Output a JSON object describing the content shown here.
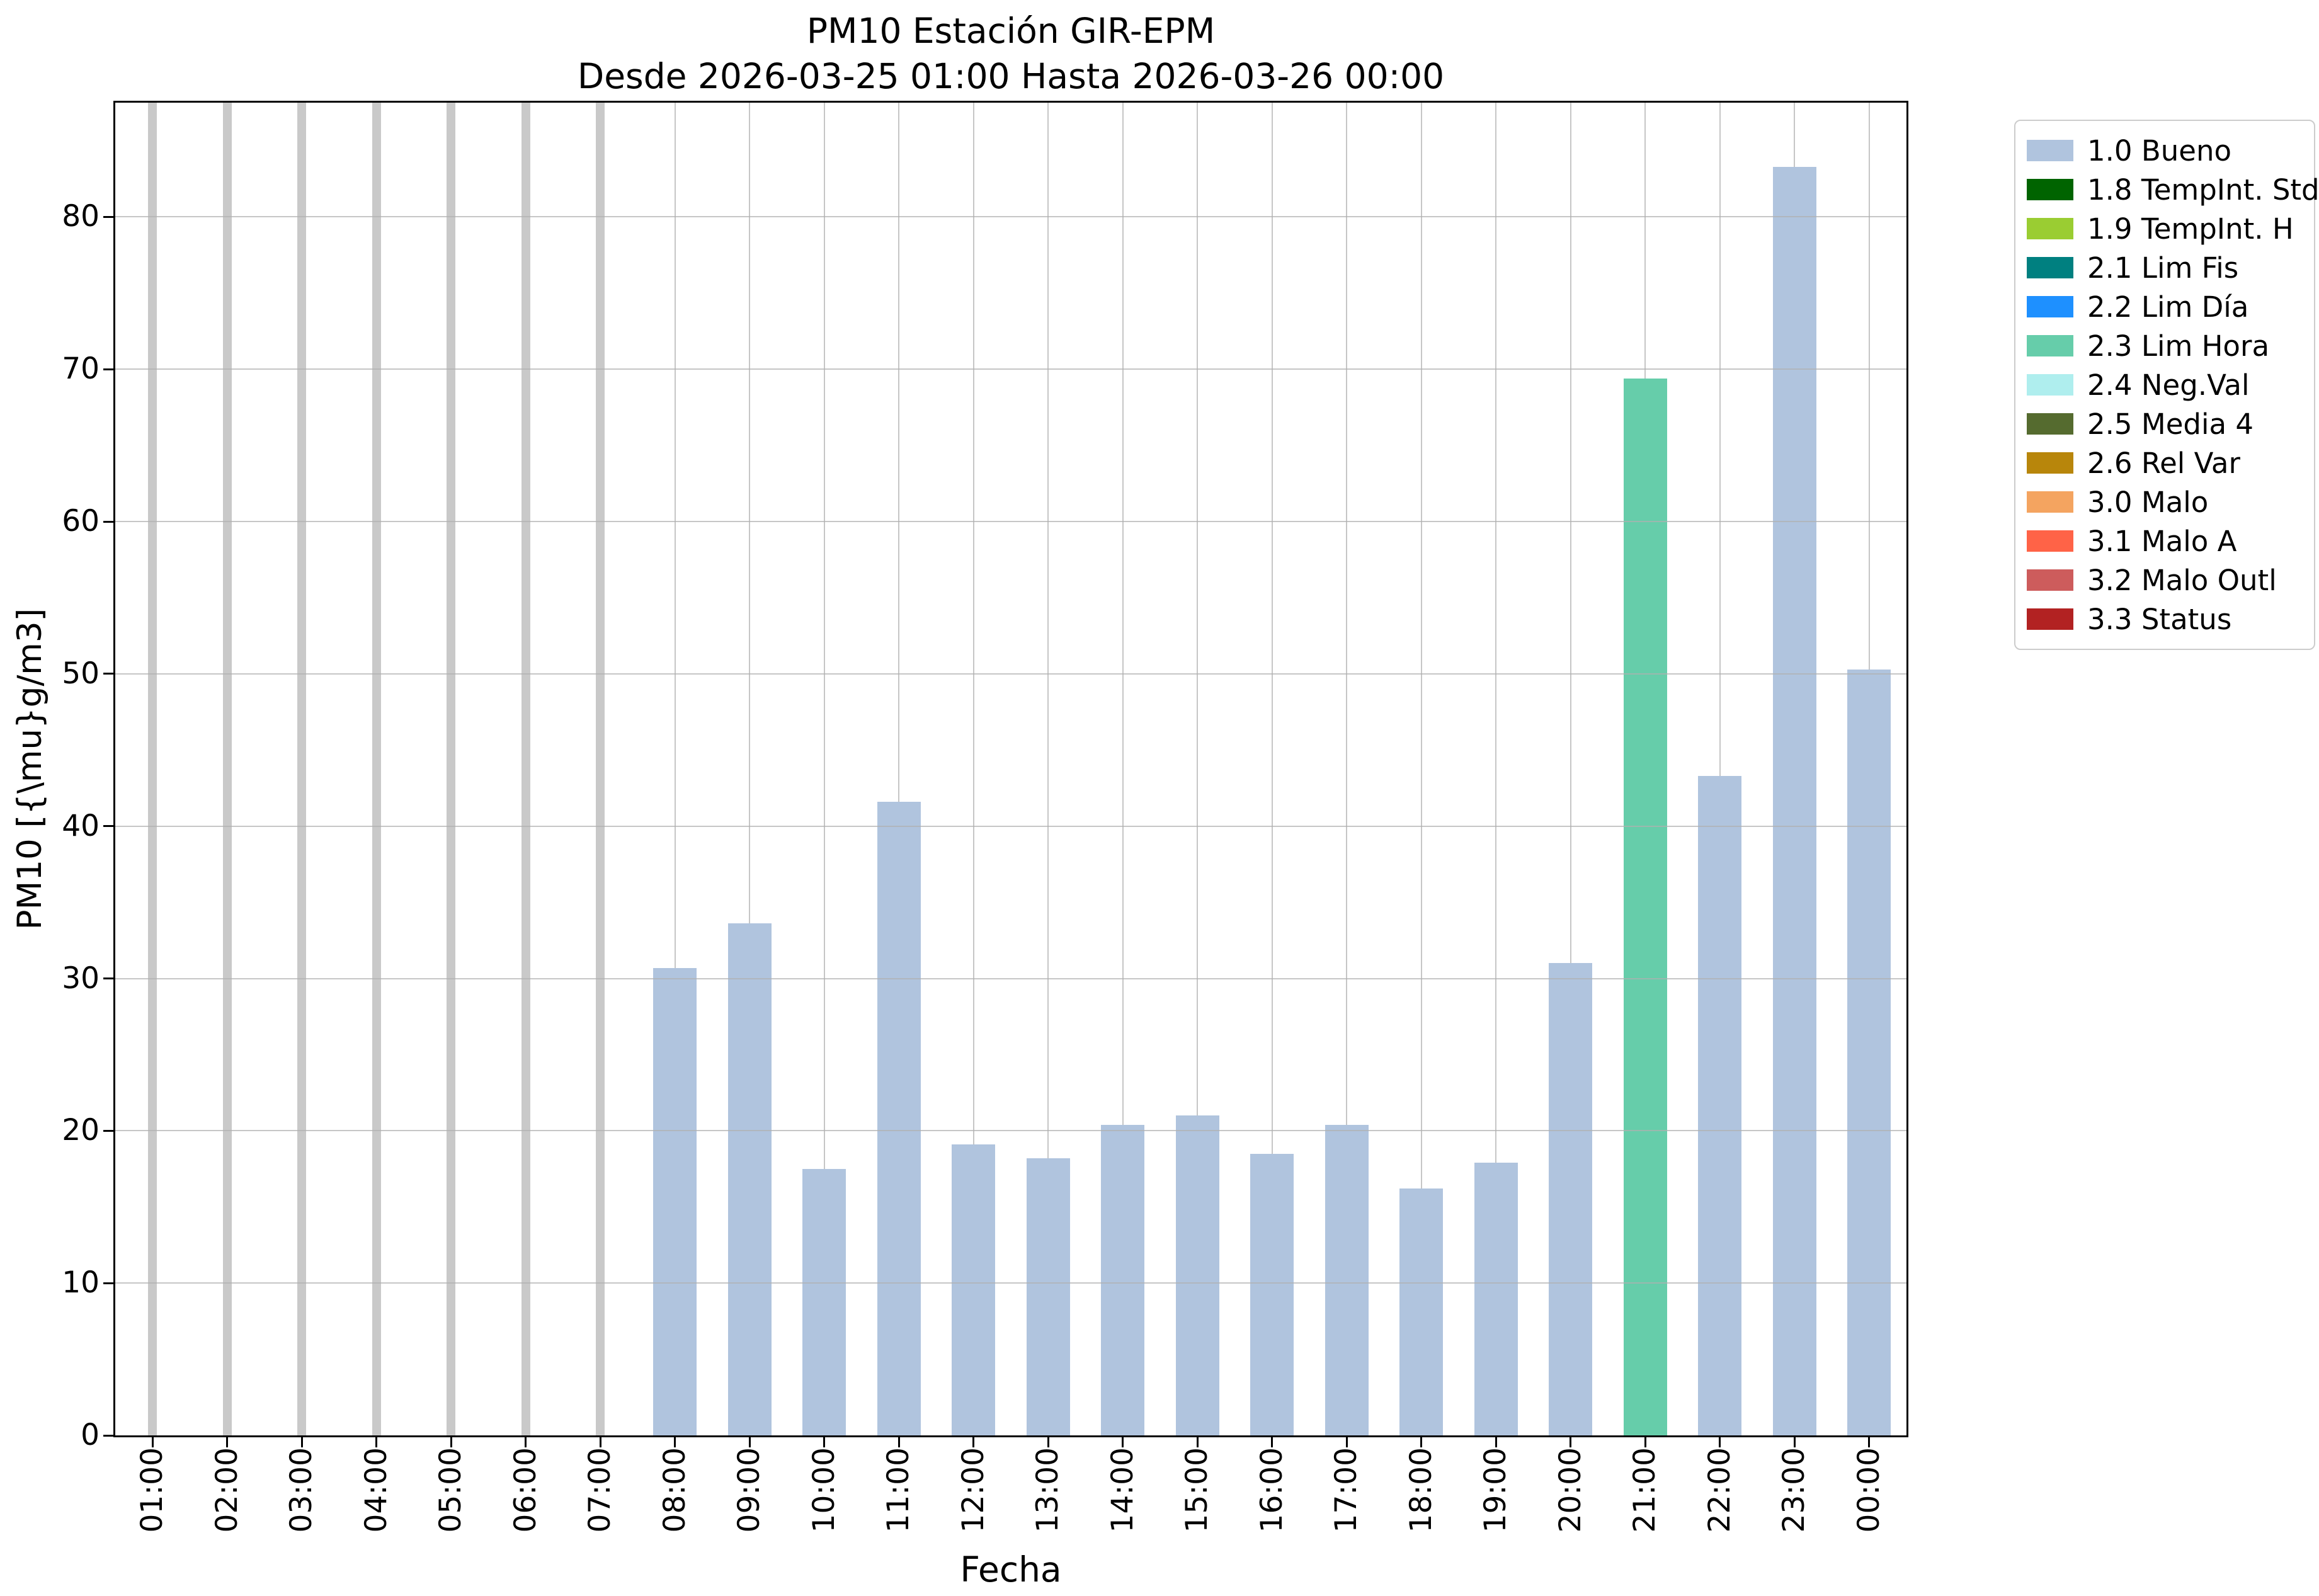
{
  "chart_data": {
    "type": "bar",
    "title": "PM10 Estación GIR-EPM",
    "subtitle": "Desde 2026-03-25 01:00 Hasta 2026-03-26 00:00",
    "xlabel": "Fecha",
    "ylabel": "PM10 [{\\mu}g/m3]",
    "ylim": [
      0,
      87.5
    ],
    "yticks": [
      0,
      10,
      20,
      30,
      40,
      50,
      60,
      70,
      80
    ],
    "grid": true,
    "categories": [
      "01:00",
      "02:00",
      "03:00",
      "04:00",
      "05:00",
      "06:00",
      "07:00",
      "08:00",
      "09:00",
      "10:00",
      "11:00",
      "12:00",
      "13:00",
      "14:00",
      "15:00",
      "16:00",
      "17:00",
      "18:00",
      "19:00",
      "20:00",
      "21:00",
      "22:00",
      "23:00",
      "00:00"
    ],
    "series": [
      {
        "category": "01:00",
        "value": null,
        "status": "missing"
      },
      {
        "category": "02:00",
        "value": null,
        "status": "missing"
      },
      {
        "category": "03:00",
        "value": null,
        "status": "missing"
      },
      {
        "category": "04:00",
        "value": null,
        "status": "missing"
      },
      {
        "category": "05:00",
        "value": null,
        "status": "missing"
      },
      {
        "category": "06:00",
        "value": null,
        "status": "missing"
      },
      {
        "category": "07:00",
        "value": null,
        "status": "missing"
      },
      {
        "category": "08:00",
        "value": 30.7,
        "status": "1.0 Bueno"
      },
      {
        "category": "09:00",
        "value": 33.6,
        "status": "1.0 Bueno"
      },
      {
        "category": "10:00",
        "value": 17.5,
        "status": "1.0 Bueno"
      },
      {
        "category": "11:00",
        "value": 41.6,
        "status": "1.0 Bueno"
      },
      {
        "category": "12:00",
        "value": 19.1,
        "status": "1.0 Bueno"
      },
      {
        "category": "13:00",
        "value": 18.2,
        "status": "1.0 Bueno"
      },
      {
        "category": "14:00",
        "value": 20.4,
        "status": "1.0 Bueno"
      },
      {
        "category": "15:00",
        "value": 21.0,
        "status": "1.0 Bueno"
      },
      {
        "category": "16:00",
        "value": 18.5,
        "status": "1.0 Bueno"
      },
      {
        "category": "17:00",
        "value": 20.4,
        "status": "1.0 Bueno"
      },
      {
        "category": "18:00",
        "value": 16.2,
        "status": "1.0 Bueno"
      },
      {
        "category": "19:00",
        "value": 17.9,
        "status": "1.0 Bueno"
      },
      {
        "category": "20:00",
        "value": 31.0,
        "status": "1.0 Bueno"
      },
      {
        "category": "21:00",
        "value": 69.4,
        "status": "2.3 Lim Hora"
      },
      {
        "category": "22:00",
        "value": 43.3,
        "status": "1.0 Bueno"
      },
      {
        "category": "23:00",
        "value": 83.3,
        "status": "1.0 Bueno"
      },
      {
        "category": "00:00",
        "value": 50.3,
        "status": "1.0 Bueno"
      }
    ],
    "missing_bar_color": "#c9c9c9",
    "legend": {
      "position": "outside-top-right",
      "entries": [
        {
          "label": "1.0 Bueno",
          "color": "#b0c4de"
        },
        {
          "label": "1.8 TempInt. Std",
          "color": "#006400"
        },
        {
          "label": "1.9 TempInt. H",
          "color": "#9acd32"
        },
        {
          "label": "2.1 Lim Fis",
          "color": "#008080"
        },
        {
          "label": "2.2 Lim Día",
          "color": "#1e90ff"
        },
        {
          "label": "2.3 Lim Hora",
          "color": "#66cdaa"
        },
        {
          "label": "2.4 Neg.Val",
          "color": "#afeeee"
        },
        {
          "label": "2.5 Media 4",
          "color": "#556b2f"
        },
        {
          "label": "2.6 Rel Var",
          "color": "#b8860b"
        },
        {
          "label": "3.0 Malo",
          "color": "#f4a460"
        },
        {
          "label": "3.1 Malo A",
          "color": "#ff6347"
        },
        {
          "label": "3.2 Malo Outl",
          "color": "#cd5c5c"
        },
        {
          "label": "3.3 Status",
          "color": "#b22222"
        }
      ]
    }
  }
}
